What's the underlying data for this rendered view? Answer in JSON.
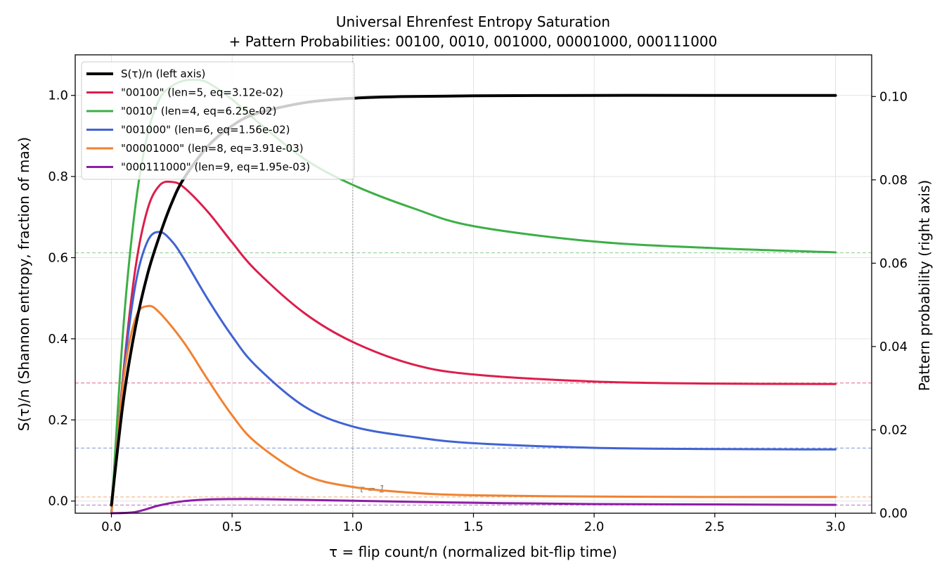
{
  "chart_data": {
    "type": "line",
    "title_line1": "Universal Ehrenfest Entropy Saturation",
    "title_line2": "+ Pattern Probabilities: 00100, 0010, 001000, 00001000, 000111000",
    "xlabel": "τ = flip count/n  (normalized bit-flip time)",
    "ylabel_left": "S(τ)/n  (Shannon entropy, fraction of max)",
    "ylabel_right": "Pattern probability  (right axis)",
    "xlim": [
      -0.15,
      3.15
    ],
    "ylim_left": [
      -0.03,
      1.1
    ],
    "ylim_right": [
      0.0,
      0.11
    ],
    "x_ticks": [
      "0.0",
      "0.5",
      "1.0",
      "1.5",
      "2.0",
      "2.5",
      "3.0"
    ],
    "y_ticks_left": [
      "0.0",
      "0.2",
      "0.4",
      "0.6",
      "0.8",
      "1.0"
    ],
    "y_ticks_right": [
      "0.00",
      "0.02",
      "0.04",
      "0.06",
      "0.08",
      "0.10"
    ],
    "grid": true,
    "legend_position": "top-left",
    "annotation": "τ = 1",
    "entropy_series": {
      "name": "S(τ)/n (left axis)",
      "color": "#000000",
      "x": [
        0,
        0.05,
        0.1,
        0.15,
        0.2,
        0.25,
        0.3,
        0.4,
        0.5,
        0.6,
        0.8,
        1.0,
        1.2,
        1.5,
        2.0,
        2.5,
        3.0
      ],
      "y": [
        -0.01,
        0.25,
        0.43,
        0.56,
        0.655,
        0.735,
        0.795,
        0.875,
        0.925,
        0.955,
        0.982,
        0.993,
        0.997,
        0.999,
        1.0,
        1.0,
        1.0
      ]
    },
    "pattern_series": [
      {
        "name": "\"00100\"  (len=5, eq=3.12e-02)",
        "color": "#dc1e4b",
        "eq": 0.03125,
        "x": [
          0,
          0.05,
          0.1,
          0.15,
          0.2,
          0.25,
          0.3,
          0.4,
          0.5,
          0.6,
          0.8,
          1.0,
          1.25,
          1.5,
          2.0,
          2.5,
          3.0
        ],
        "y": [
          0,
          0.034,
          0.059,
          0.073,
          0.0787,
          0.0795,
          0.0782,
          0.0723,
          0.065,
          0.0582,
          0.048,
          0.0411,
          0.0357,
          0.0333,
          0.0316,
          0.0311,
          0.031
        ]
      },
      {
        "name": "\"0010\"  (len=4, eq=6.25e-02)",
        "color": "#3caf46",
        "eq": 0.0625,
        "x": [
          0,
          0.05,
          0.1,
          0.15,
          0.2,
          0.25,
          0.3,
          0.35,
          0.4,
          0.5,
          0.6,
          0.8,
          1.0,
          1.25,
          1.5,
          2.0,
          2.5,
          3.0
        ],
        "y": [
          0,
          0.045,
          0.074,
          0.091,
          0.0995,
          0.1025,
          0.1038,
          0.104,
          0.1033,
          0.0993,
          0.0942,
          0.085,
          0.0788,
          0.0732,
          0.0689,
          0.0652,
          0.0636,
          0.0626
        ]
      },
      {
        "name": "\"001000\"  (len=6, eq=1.56e-02)",
        "color": "#4163d2",
        "eq": 0.015625,
        "x": [
          0,
          0.05,
          0.1,
          0.15,
          0.2,
          0.25,
          0.3,
          0.4,
          0.5,
          0.6,
          0.8,
          1.0,
          1.25,
          1.5,
          2.0,
          2.5,
          3.0
        ],
        "y": [
          0,
          0.033,
          0.055,
          0.0653,
          0.0675,
          0.0653,
          0.0611,
          0.0513,
          0.0425,
          0.0353,
          0.0256,
          0.0208,
          0.0183,
          0.0168,
          0.0157,
          0.0154,
          0.0153
        ]
      },
      {
        "name": "\"00001000\"  (len=8, eq=3.91e-03)",
        "color": "#f08232",
        "eq": 0.0039,
        "x": [
          0,
          0.05,
          0.1,
          0.15,
          0.2,
          0.3,
          0.4,
          0.5,
          0.6,
          0.8,
          1.0,
          1.25,
          1.5,
          2.0,
          2.5,
          3.0
        ],
        "y": [
          0,
          0.032,
          0.0468,
          0.0497,
          0.0481,
          0.041,
          0.032,
          0.0235,
          0.0169,
          0.0092,
          0.0063,
          0.0049,
          0.0043,
          0.004,
          0.0039,
          0.0039
        ]
      },
      {
        "name": "\"000111000\"  (len=9, eq=1.95e-03)",
        "color": "#8c1ea5",
        "eq": 0.00195,
        "x": [
          0,
          0.1,
          0.2,
          0.3,
          0.4,
          0.5,
          0.6,
          0.8,
          1.0,
          1.5,
          2.0,
          2.5,
          3.0
        ],
        "y": [
          0,
          0.0003,
          0.0019,
          0.0029,
          0.0033,
          0.0034,
          0.0034,
          0.0032,
          0.003,
          0.0025,
          0.0022,
          0.0021,
          0.002
        ]
      }
    ]
  }
}
